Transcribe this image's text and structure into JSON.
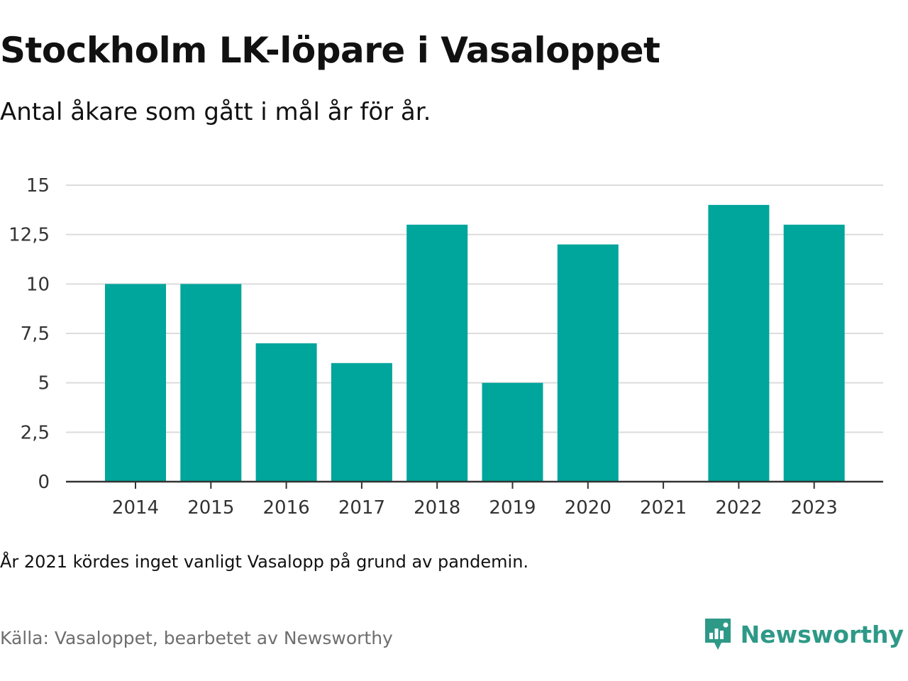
{
  "title": "Stockholm LK-löpare i Vasaloppet",
  "subtitle": "Antal åkare som gått i mål år för år.",
  "note": "År 2021 kördes inget vanligt Vasalopp på grund av pandemin.",
  "source": "Källa: Vasaloppet, bearbetet av Newsworthy",
  "brand": {
    "name": "Newsworthy",
    "icon": "newsworthy-logo-icon"
  },
  "colors": {
    "bar": "#00a59b",
    "grid": "#dcdcdc",
    "axis": "#333333",
    "brand": "#2e9987"
  },
  "chart_data": {
    "type": "bar",
    "categories": [
      "2014",
      "2015",
      "2016",
      "2017",
      "2018",
      "2019",
      "2020",
      "2021",
      "2022",
      "2023"
    ],
    "values": [
      10,
      10,
      7,
      6,
      13,
      5,
      12,
      null,
      14,
      13
    ],
    "ylim": [
      0,
      15
    ],
    "yticks": [
      0,
      2.5,
      5,
      7.5,
      10,
      12.5,
      15
    ],
    "ytick_labels": [
      "0",
      "2,5",
      "5",
      "7,5",
      "10",
      "12,5",
      "15"
    ],
    "title": "Stockholm LK-löpare i Vasaloppet",
    "subtitle": "Antal åkare som gått i mål år för år.",
    "xlabel": "",
    "ylabel": "",
    "grid": true,
    "legend": "none"
  }
}
